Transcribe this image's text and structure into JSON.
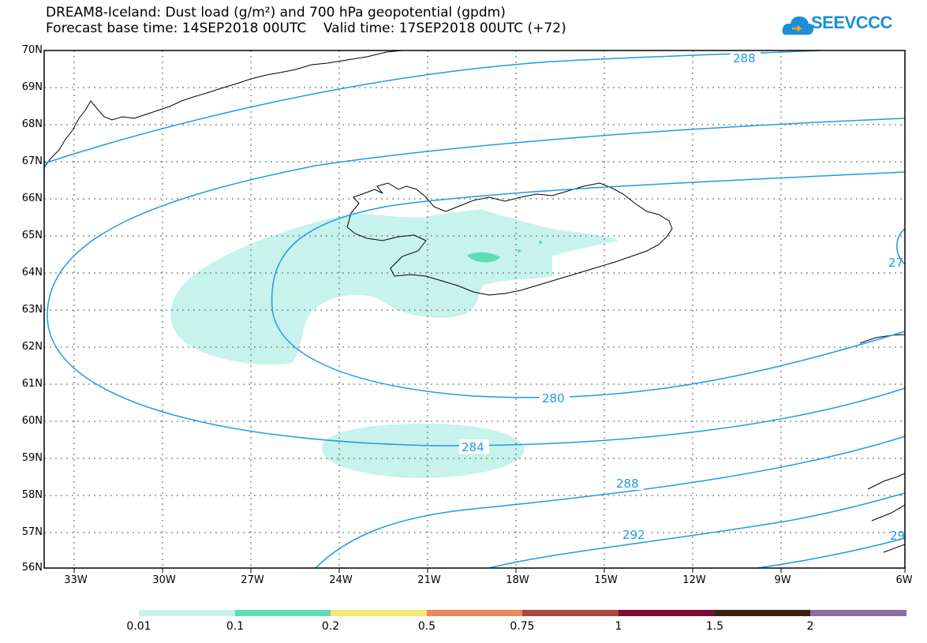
{
  "title_line1": "DREAM8-Iceland: Dust load (g/m²) and 700 hPa geopotential (gpdm)",
  "title_line2": "Forecast base time: 14SEP2018 00UTC    Valid time: 17SEP2018 00UTC (+72)",
  "logo_text": "SEEVCCC",
  "colors": {
    "contour": "#1e9be6",
    "dust_lowest": "#c8f2ec",
    "dust_low": "#5fdcb4",
    "land_outline": "#000000"
  },
  "latitude_labels": [
    "70N",
    "69N",
    "68N",
    "67N",
    "66N",
    "65N",
    "64N",
    "63N",
    "62N",
    "61N",
    "60N",
    "59N",
    "58N",
    "57N",
    "56N"
  ],
  "longitude_labels": [
    "33W",
    "30W",
    "27W",
    "24W",
    "21W",
    "18W",
    "15W",
    "12W",
    "9W",
    "6W"
  ],
  "contour_labels": [
    "288",
    "280",
    "284",
    "288",
    "292",
    "27",
    "29"
  ],
  "colorbar": {
    "colors": [
      "#c8f2ec",
      "#5fdcb4",
      "#f5e87a",
      "#e88a62",
      "#a84a3e",
      "#7a0e2e",
      "#3a2010",
      "#8c6ea0"
    ],
    "labels": [
      "0.01",
      "0.1",
      "0.2",
      "0.5",
      "0.75",
      "1",
      "1.5",
      "2"
    ]
  }
}
